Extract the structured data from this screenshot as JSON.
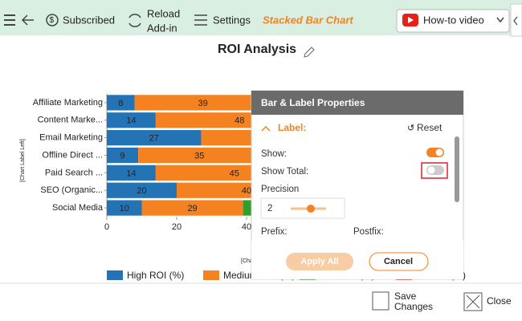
{
  "toolbar": {
    "subscribed": "Subscribed",
    "reload": [
      "Reload",
      "Add-in"
    ],
    "settings": "Settings",
    "chart_type": "Stacked Bar Chart",
    "video": "How-to video"
  },
  "chart_data": {
    "type": "bar",
    "orientation": "horizontal",
    "stacked": true,
    "title": "ROI Analysis",
    "y_label": "[Chart Label Left]",
    "x_label": "[Chart Label Bottom]",
    "categories": [
      "Affiliate Marketing",
      "Content Marke...",
      "Email Marketing",
      "Offline Direct ...",
      "Paid Search ...",
      "SEO (Organic...",
      "Social Media"
    ],
    "series": [
      {
        "name": "High ROI (%)",
        "color": "#2474b5",
        "values": [
          8,
          14,
          27,
          9,
          14,
          20,
          10
        ]
      },
      {
        "name": "Medium ROI (%)",
        "color": "#f58220",
        "values": [
          39,
          48,
          45,
          35,
          45,
          40,
          29
        ]
      },
      {
        "name": "Low ROI (%)",
        "color": "#2ca02c",
        "values": [
          null,
          null,
          null,
          null,
          null,
          null,
          31
        ]
      },
      {
        "name": "No ROI (%)",
        "color": "#d62728",
        "values": [
          null,
          null,
          null,
          null,
          null,
          null,
          null
        ]
      }
    ],
    "xlim": [
      0,
      100
    ],
    "xticks": [
      0,
      20,
      40,
      60,
      80,
      100
    ],
    "grid": false,
    "legend": "bottom"
  },
  "panel": {
    "title": "Bar & Label Properties",
    "section": "Label:",
    "reset": "Reset",
    "show": "Show:",
    "show_total": "Show Total:",
    "precision": "Precision",
    "precision_value": "2",
    "prefix": "Prefix:",
    "postfix": "Postfix:",
    "apply_all": "Apply All",
    "cancel": "Cancel"
  },
  "footer": {
    "save": [
      "Save",
      "Changes"
    ],
    "close": "Close"
  }
}
